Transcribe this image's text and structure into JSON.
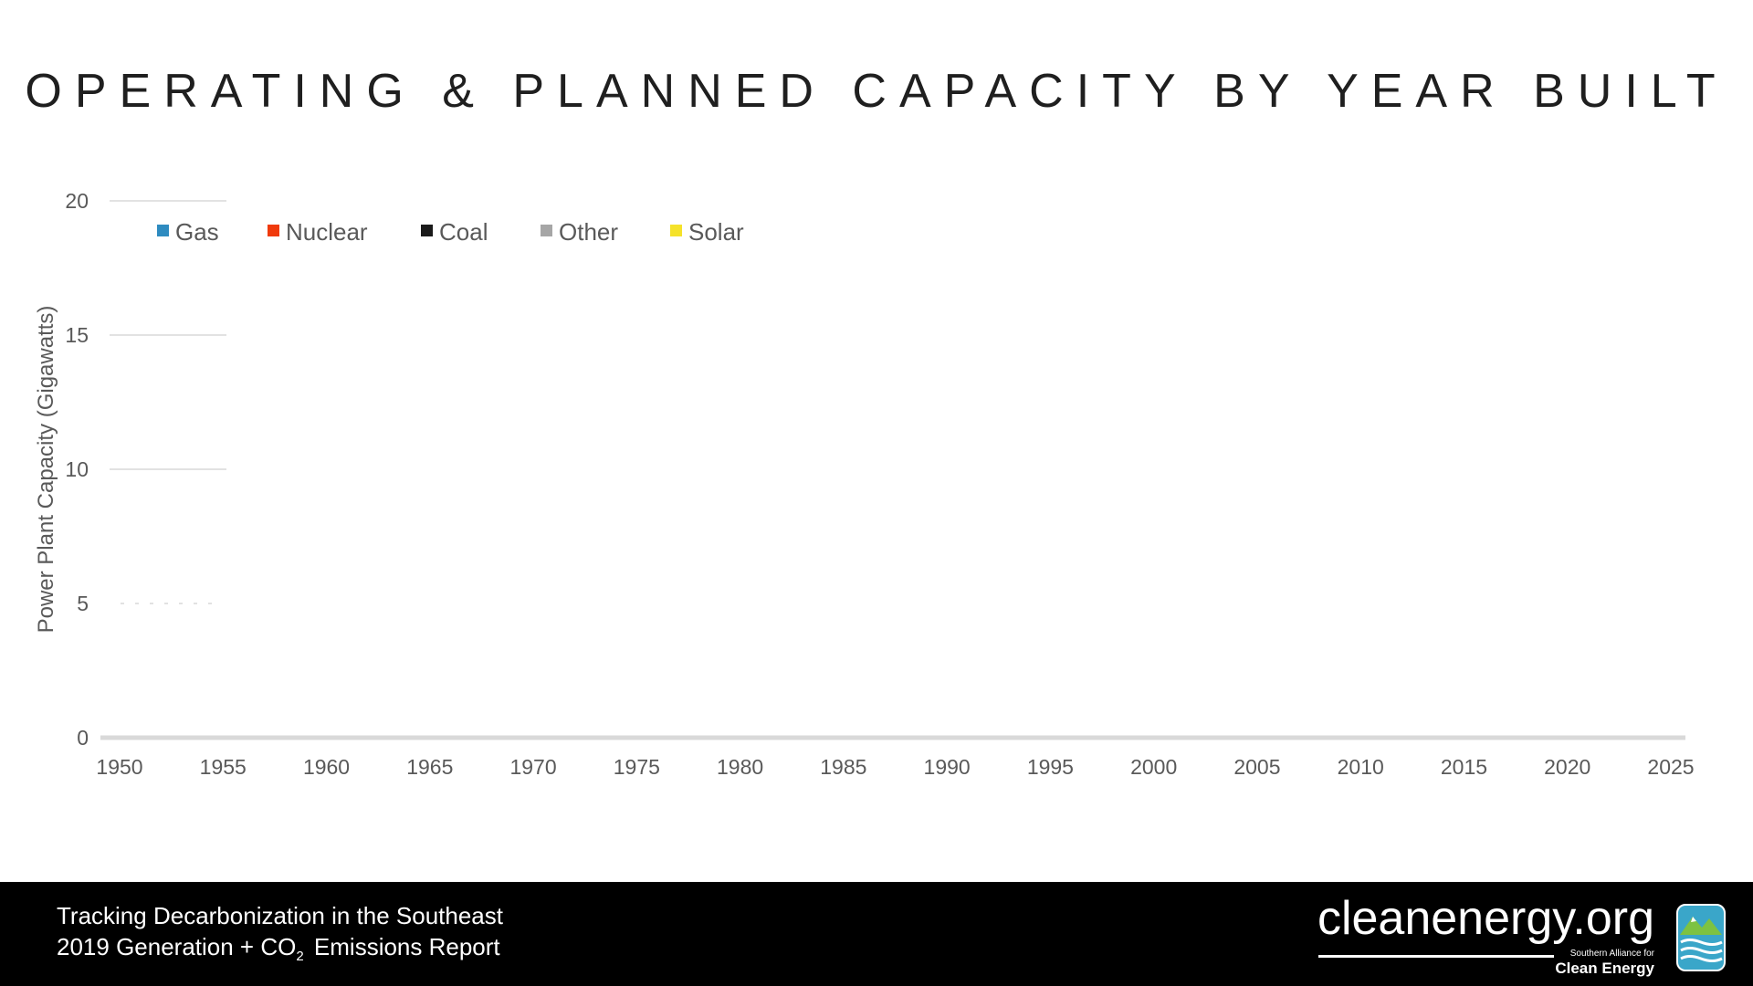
{
  "slide": {
    "title": "OPERATING & PLANNED CAPACITY BY YEAR BUILT"
  },
  "chart_data": {
    "type": "area",
    "title": "OPERATING & PLANNED CAPACITY BY YEAR BUILT",
    "ylabel": "Power Plant Capacity (Gigawatts)",
    "xlabel": "",
    "xlim": [
      1950,
      2025
    ],
    "ylim": [
      0,
      20
    ],
    "x_ticks": [
      1950,
      1955,
      1960,
      1965,
      1970,
      1975,
      1980,
      1985,
      1990,
      1995,
      2000,
      2005,
      2010,
      2015,
      2020,
      2025
    ],
    "y_ticks": [
      0,
      5,
      10,
      15,
      20
    ],
    "grid": true,
    "legend_position": "top-left",
    "series": [
      {
        "name": "Gas",
        "color": "#2e8bc0",
        "values": []
      },
      {
        "name": "Nuclear",
        "color": "#f03a0c",
        "values": []
      },
      {
        "name": "Coal",
        "color": "#1a1a1a",
        "values": []
      },
      {
        "name": "Other",
        "color": "#a6a6a6",
        "values": []
      },
      {
        "name": "Solar",
        "color": "#f5e22a",
        "values": []
      }
    ]
  },
  "footer": {
    "line1": "Tracking Decarbonization in the Southeast",
    "line2_prefix": "2019 Generation + CO",
    "line2_sub": "2",
    "line2_suffix": " Emissions Report",
    "brand_name": "cleanenergy.org",
    "brand_sub1": "Southern Alliance for",
    "brand_sub2": "Clean Energy",
    "logo_icon": "mountain-waves-logo-icon"
  }
}
